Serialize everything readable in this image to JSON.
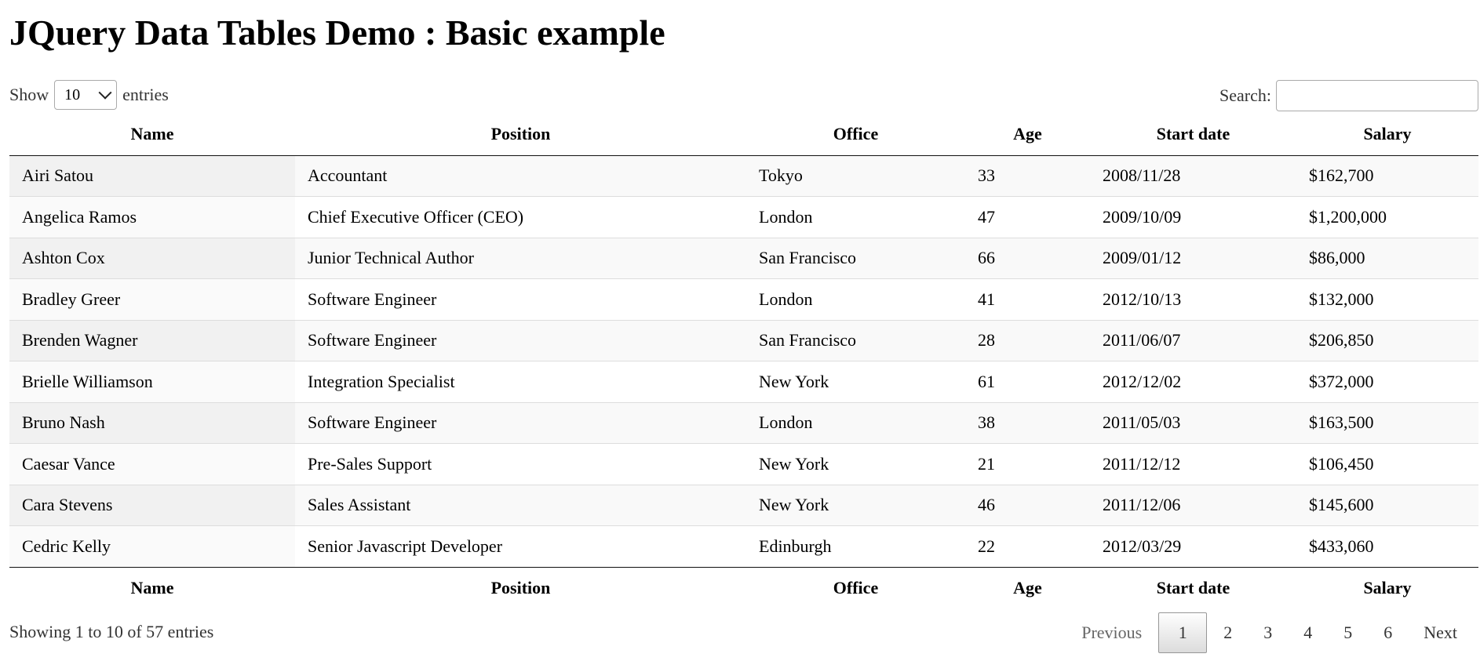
{
  "title": "JQuery Data Tables Demo : Basic example",
  "length_menu": {
    "label_before": "Show",
    "selected": "10",
    "label_after": "entries"
  },
  "search": {
    "label": "Search:",
    "value": "",
    "placeholder": ""
  },
  "columns": [
    "Name",
    "Position",
    "Office",
    "Age",
    "Start date",
    "Salary"
  ],
  "rows": [
    [
      "Airi Satou",
      "Accountant",
      "Tokyo",
      "33",
      "2008/11/28",
      "$162,700"
    ],
    [
      "Angelica Ramos",
      "Chief Executive Officer (CEO)",
      "London",
      "47",
      "2009/10/09",
      "$1,200,000"
    ],
    [
      "Ashton Cox",
      "Junior Technical Author",
      "San Francisco",
      "66",
      "2009/01/12",
      "$86,000"
    ],
    [
      "Bradley Greer",
      "Software Engineer",
      "London",
      "41",
      "2012/10/13",
      "$132,000"
    ],
    [
      "Brenden Wagner",
      "Software Engineer",
      "San Francisco",
      "28",
      "2011/06/07",
      "$206,850"
    ],
    [
      "Brielle Williamson",
      "Integration Specialist",
      "New York",
      "61",
      "2012/12/02",
      "$372,000"
    ],
    [
      "Bruno Nash",
      "Software Engineer",
      "London",
      "38",
      "2011/05/03",
      "$163,500"
    ],
    [
      "Caesar Vance",
      "Pre-Sales Support",
      "New York",
      "21",
      "2011/12/12",
      "$106,450"
    ],
    [
      "Cara Stevens",
      "Sales Assistant",
      "New York",
      "46",
      "2011/12/06",
      "$145,600"
    ],
    [
      "Cedric Kelly",
      "Senior Javascript Developer",
      "Edinburgh",
      "22",
      "2012/03/29",
      "$433,060"
    ]
  ],
  "info": "Showing 1 to 10 of 57 entries",
  "pagination": {
    "previous": "Previous",
    "pages": [
      "1",
      "2",
      "3",
      "4",
      "5",
      "6"
    ],
    "current": "1",
    "next": "Next"
  }
}
